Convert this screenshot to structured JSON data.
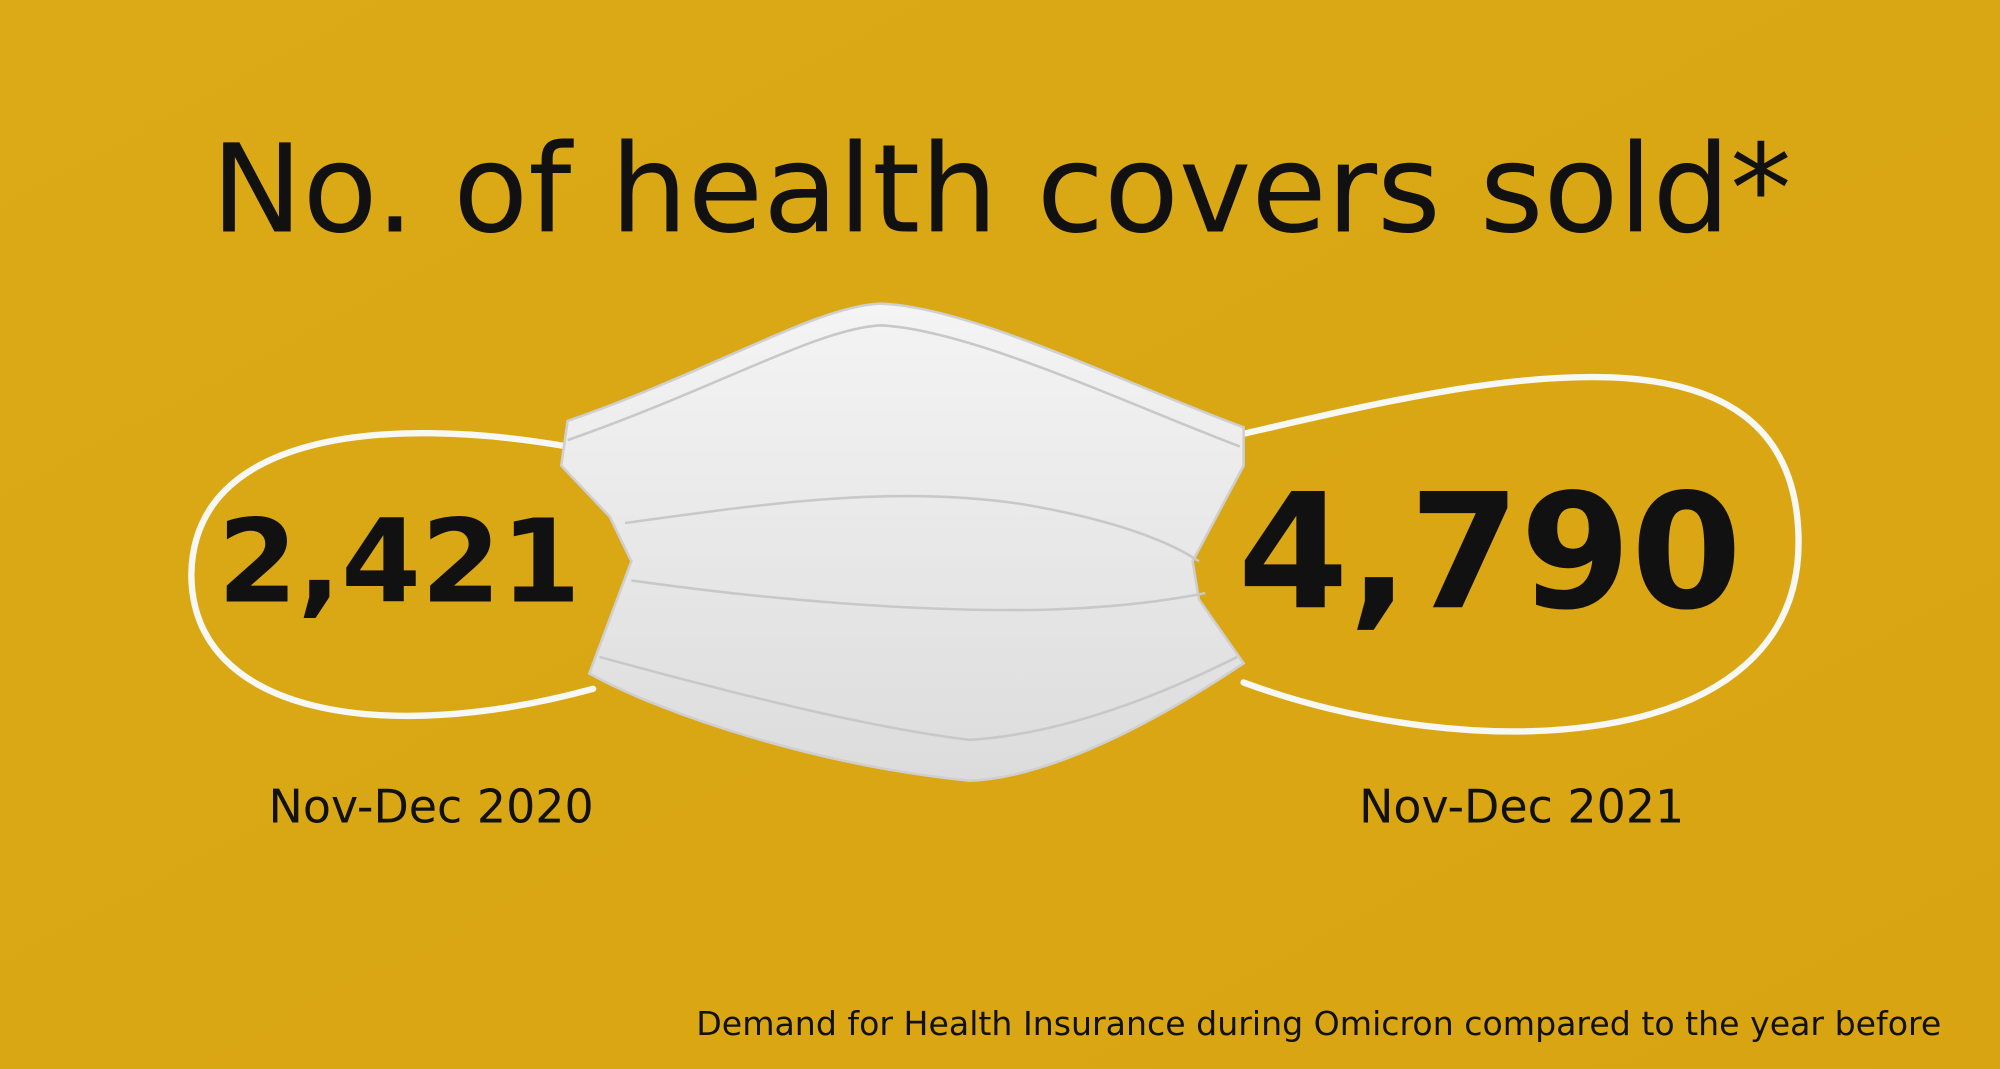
{
  "title": "No. of health covers sold*",
  "figures": [
    {
      "number": "2,421",
      "period": "Nov-Dec 2020"
    },
    {
      "number": "4,790",
      "period": "Nov-Dec 2021"
    }
  ],
  "footnote": "Demand for Health Insurance during Omicron compared to the year before"
}
